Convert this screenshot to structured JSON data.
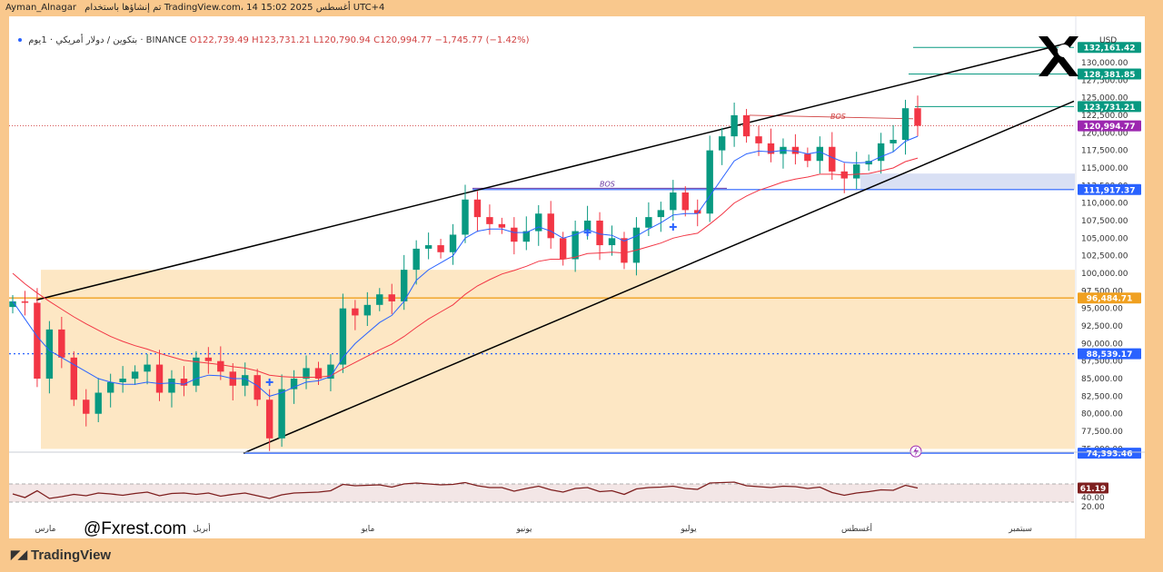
{
  "header": {
    "username": "Ayman_Alnagar",
    "caption": "تم إنشاؤها باستخدام TradingView.com، 14 أغسطس 2025 15:02 UTC+4"
  },
  "legend": {
    "symbol": "بتكوين / دولار أمريكي · 1يوم · BINANCE",
    "open": "O122,739.49",
    "high": "H123,731.21",
    "low": "L120,790.94",
    "close": "C120,994.77",
    "change": "−1,745.77 (−1.42%)"
  },
  "axis": {
    "currency": "USD"
  },
  "watermark": {
    "handle": "@Fxrest.com",
    "logo": "TradingView"
  },
  "colors": {
    "up": "#089981",
    "down": "#f23645",
    "ema_fast": "#2962ff",
    "ema_slow": "#f23645",
    "frame": "#f9c88d",
    "zone": "#fde7c4",
    "support_line": "#f0a020"
  },
  "chart_data": {
    "type": "candlestick",
    "ylim": [
      20000,
      134000
    ],
    "price_ticks": [
      75000,
      77500,
      80000,
      82500,
      85000,
      87500,
      90000,
      92500,
      95000,
      97500,
      100000,
      102500,
      105000,
      107500,
      110000,
      112500,
      115000,
      117500,
      120000,
      122500,
      125000,
      127500,
      130000
    ],
    "price_tick_labels": [
      "75,000.00",
      "77,500.00",
      "80,000.00",
      "82,500.00",
      "85,000.00",
      "87,500.00",
      "90,000.00",
      "92,500.00",
      "95,000.00",
      "97,500.00",
      "100,000.00",
      "102,500.00",
      "105,000.00",
      "107,500.00",
      "110,000.00",
      "112,500.00",
      "115,000.00",
      "117,500.00",
      "120,000.00",
      "122,500.00",
      "125,000.00",
      "127,500.00",
      "130,000.00"
    ],
    "x_labels": [
      "مارس",
      "أبريل",
      "مايو",
      "يونيو",
      "يوليو",
      "أغسطس",
      "سبتمبر"
    ],
    "price_labels": [
      {
        "value": 132161.42,
        "text": "132,161.42",
        "color": "#089981"
      },
      {
        "value": 128381.85,
        "text": "128,381.85",
        "color": "#089981"
      },
      {
        "value": 123731.21,
        "text": "123,731.21",
        "color": "#089981"
      },
      {
        "value": 120994.77,
        "text": "120,994.77",
        "color": "#9c27b0"
      },
      {
        "value": 111917.37,
        "text": "111,917.37",
        "color": "#2962ff"
      },
      {
        "value": 96484.71,
        "text": "96,484.71",
        "color": "#f0a020"
      },
      {
        "value": 88539.17,
        "text": "88,539.17",
        "color": "#2962ff"
      },
      {
        "value": 74393.46,
        "text": "74,393.46",
        "color": "#2962ff"
      }
    ],
    "annotations": [
      "BOS",
      "BOS"
    ],
    "trend_price": [
      96000,
      95800,
      85000,
      92000,
      88000,
      82000,
      80000,
      83000,
      84500,
      85000,
      86000,
      87000,
      83000,
      85000,
      84000,
      88000,
      87500,
      86000,
      84000,
      85500,
      82000,
      76500,
      83500,
      85000,
      86500,
      85000,
      87000,
      95000,
      94000,
      95500,
      97000,
      96000,
      100500,
      103500,
      104000,
      103000,
      105500,
      110500,
      108000,
      107000,
      106500,
      104500,
      106000,
      108500,
      105000,
      102000,
      106000,
      107500,
      104000,
      105000,
      101500,
      106500,
      108000,
      109000,
      111500,
      109000,
      108500,
      117500,
      119500,
      122500,
      119500,
      118500,
      117000,
      118000,
      117000,
      116000,
      118000,
      114500,
      113500,
      115500,
      116000,
      118500,
      119000,
      123500,
      121000
    ],
    "ema_fast": [
      96000,
      93500,
      91000,
      89000,
      88000,
      87000,
      86000,
      85000,
      84500,
      84200,
      84200,
      84500,
      84300,
      84400,
      84200,
      85000,
      85500,
      85400,
      85000,
      85000,
      84000,
      82500,
      83000,
      83800,
      84500,
      84700,
      85300,
      88000,
      90000,
      91500,
      93000,
      94000,
      96000,
      99000,
      100500,
      101500,
      102500,
      105000,
      106000,
      106300,
      106300,
      105800,
      105800,
      106600,
      106000,
      105000,
      105500,
      106200,
      105600,
      105400,
      104600,
      105300,
      106300,
      107200,
      108300,
      108500,
      108500,
      111000,
      113500,
      116000,
      117000,
      117400,
      117300,
      117500,
      117400,
      117000,
      117300,
      116500,
      115800,
      115700,
      115800,
      116600,
      117300,
      118800,
      119500
    ],
    "ema_slow": [
      100000,
      98500,
      97200,
      96000,
      94900,
      93800,
      92800,
      91900,
      91000,
      90300,
      89700,
      89200,
      88600,
      88100,
      87600,
      87400,
      87200,
      87000,
      86700,
      86500,
      86100,
      85500,
      85300,
      85200,
      85200,
      85200,
      85400,
      86400,
      87300,
      88200,
      89100,
      89900,
      91000,
      92300,
      93500,
      94500,
      95500,
      97000,
      98200,
      99100,
      99900,
      100400,
      101000,
      101700,
      102000,
      102000,
      102300,
      102800,
      102900,
      103000,
      102900,
      103300,
      103800,
      104300,
      105000,
      105400,
      105700,
      107000,
      108400,
      110000,
      111000,
      111800,
      112400,
      113000,
      113400,
      113700,
      114100,
      114100,
      114000,
      114100,
      114200,
      114600,
      115000,
      115900,
      116400
    ],
    "rsi": {
      "ylim": [
        20,
        80
      ],
      "tick_labels": [
        "40.00",
        "20.00"
      ],
      "last": "61.19",
      "values": [
        48,
        40,
        55,
        38,
        42,
        47,
        44,
        50,
        48,
        45,
        49,
        52,
        44,
        49,
        50,
        47,
        50,
        43,
        47,
        50,
        44,
        38,
        46,
        50,
        51,
        52,
        55,
        69,
        66,
        67,
        68,
        63,
        70,
        72,
        70,
        68,
        69,
        73,
        66,
        62,
        62,
        54,
        60,
        65,
        57,
        52,
        60,
        62,
        53,
        55,
        47,
        59,
        62,
        63,
        65,
        60,
        58,
        72,
        73,
        74,
        66,
        64,
        62,
        65,
        64,
        60,
        63,
        51,
        45,
        50,
        53,
        57,
        56,
        67,
        61
      ]
    }
  }
}
